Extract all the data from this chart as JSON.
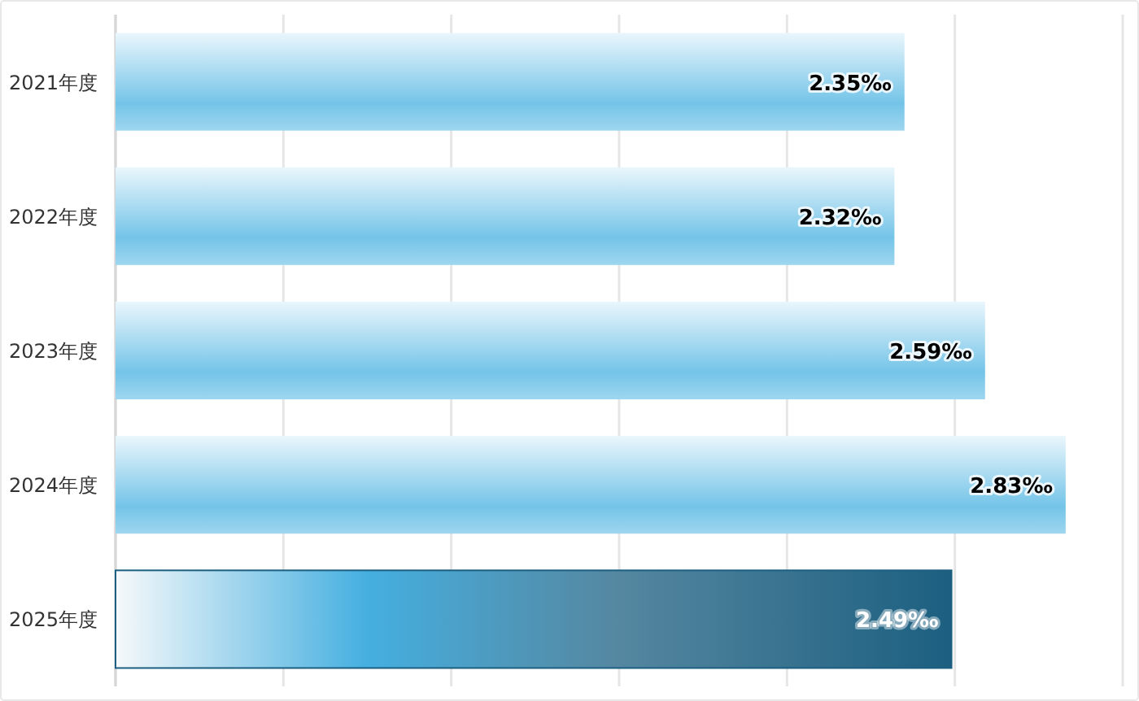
{
  "chart_data": {
    "type": "bar",
    "orientation": "horizontal",
    "categories": [
      "2021年度",
      "2022年度",
      "2023年度",
      "2024年度",
      "2025年度"
    ],
    "values": [
      2.35,
      2.32,
      2.59,
      2.83,
      2.49
    ],
    "colors": [
      "#74c4e8",
      "#74c4e8",
      "#74c4e8",
      "#74c4e8",
      "#1c5f80"
    ],
    "value_labels": [
      "2.35‰",
      "2.32‰",
      "2.59‰",
      "2.83‰",
      "2.49‰"
    ],
    "xlim": [
      0,
      3
    ],
    "xticks": [
      {
        "value": 0,
        "label": null
      },
      {
        "value": 0.5,
        "label": null
      },
      {
        "value": 1,
        "label": null
      },
      {
        "value": 1.5,
        "label": null
      },
      {
        "value": 2,
        "label": null
      },
      {
        "value": 2.5,
        "label": null
      },
      {
        "value": 3,
        "label": null
      }
    ],
    "grid": "x",
    "tick_labels": "y"
  }
}
